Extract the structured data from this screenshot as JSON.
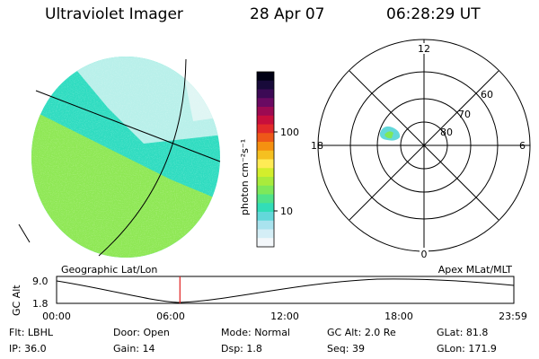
{
  "header": {
    "title": "Ultraviolet Imager",
    "date": "28 Apr 07",
    "time": "06:28:29 UT"
  },
  "colorbar": {
    "unit_label": "photon cm⁻²s⁻¹",
    "ticks": [
      "100",
      "10"
    ],
    "colors": [
      "#f3f7fa",
      "#d4eef6",
      "#a9e3ee",
      "#63d8da",
      "#32ddb8",
      "#50e38a",
      "#7ee85a",
      "#a9eb3c",
      "#d3ee2c",
      "#ffeb55",
      "#f5c020",
      "#f59010",
      "#ee5818",
      "#e22a2a",
      "#c80f3c",
      "#9c0a52",
      "#6a0a62",
      "#3c0a55",
      "#180a3a",
      "#000014"
    ]
  },
  "earth_image": {
    "globe_colors": [
      "#2edcc0",
      "#8ee854",
      "#b8f0ea",
      "#dff6f4",
      "#f4fafb"
    ]
  },
  "polar_plot": {
    "clock_labels": {
      "top": "12",
      "bottom": "0",
      "left": "18",
      "right": "6"
    },
    "lat_labels": [
      "80",
      "70",
      "60"
    ]
  },
  "timeline": {
    "ylabel": "GC Alt",
    "y_ticks": [
      "9.0",
      "1.8"
    ],
    "left_label": "Geographic Lat/Lon",
    "right_label": "Apex MLat/MLT",
    "x_ticks": [
      "00:00",
      "06:00",
      "12:00",
      "18:00",
      "23:59"
    ],
    "current_time_hours": 6.475,
    "marker_color": "#e02020"
  },
  "status": {
    "row1": [
      {
        "label": "Flt:",
        "value": "LBHL"
      },
      {
        "label": "Door:",
        "value": "Open"
      },
      {
        "label": "Mode:",
        "value": "Normal"
      },
      {
        "label": "GC Alt:",
        "value": "2.0 Re"
      },
      {
        "label": "GLat:",
        "value": "81.8"
      }
    ],
    "row2": [
      {
        "label": "IP:",
        "value": "36.0"
      },
      {
        "label": "Gain:",
        "value": "14"
      },
      {
        "label": "Dsp:",
        "value": "1.8"
      },
      {
        "label": "Seq:",
        "value": "39"
      },
      {
        "label": "GLon:",
        "value": "171.9"
      }
    ]
  }
}
